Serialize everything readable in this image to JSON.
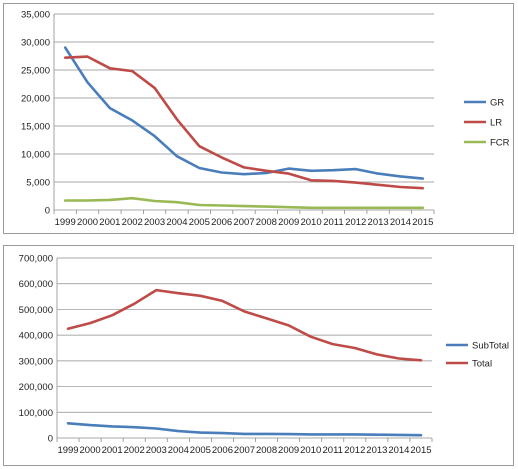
{
  "chart_data": [
    {
      "type": "line",
      "categories": [
        "1999",
        "2000",
        "2001",
        "2002",
        "2003",
        "2004",
        "2005",
        "2006",
        "2007",
        "2008",
        "2009",
        "2010",
        "2011",
        "2012",
        "2013",
        "2014",
        "2015"
      ],
      "ylim": [
        0,
        35000
      ],
      "yticks": [
        "0",
        "5,000",
        "10,000",
        "15,000",
        "20,000",
        "25,000",
        "30,000",
        "35,000"
      ],
      "ytick_values": [
        0,
        5000,
        10000,
        15000,
        20000,
        25000,
        30000,
        35000
      ],
      "grid": "horizontal",
      "legend_position": "right",
      "series": [
        {
          "name": "GR",
          "color": "#4a7ebb",
          "values": [
            29000,
            22800,
            18200,
            16000,
            13200,
            9600,
            7500,
            6700,
            6400,
            6600,
            7400,
            7000,
            7100,
            7300,
            6500,
            6000,
            5600
          ]
        },
        {
          "name": "LR",
          "color": "#be4b48",
          "values": [
            27200,
            27400,
            25300,
            24800,
            21800,
            16200,
            11400,
            9400,
            7600,
            7000,
            6500,
            5300,
            5200,
            4900,
            4500,
            4100,
            3900
          ]
        },
        {
          "name": "FCR",
          "color": "#98b954",
          "values": [
            1700,
            1700,
            1800,
            2100,
            1600,
            1400,
            900,
            800,
            700,
            600,
            500,
            400,
            400,
            400,
            400,
            400,
            400
          ]
        }
      ]
    },
    {
      "type": "line",
      "categories": [
        "1999",
        "2000",
        "2001",
        "2002",
        "2003",
        "2004",
        "2005",
        "2006",
        "2007",
        "2008",
        "2009",
        "2010",
        "2011",
        "2012",
        "2013",
        "2014",
        "2015"
      ],
      "ylim": [
        0,
        700000
      ],
      "yticks": [
        "0",
        "100,000",
        "200,000",
        "300,000",
        "400,000",
        "500,000",
        "600,000",
        "700,000"
      ],
      "ytick_values": [
        0,
        100000,
        200000,
        300000,
        400000,
        500000,
        600000,
        700000
      ],
      "grid": "horizontal",
      "legend_position": "right",
      "series": [
        {
          "name": "SubTotal",
          "color": "#4a7ebb",
          "values": [
            57000,
            50000,
            45000,
            42000,
            37000,
            27000,
            21000,
            19000,
            16000,
            16000,
            15000,
            14000,
            14000,
            14000,
            13000,
            12000,
            11000
          ]
        },
        {
          "name": "Total",
          "color": "#be4b48",
          "values": [
            425000,
            447000,
            477000,
            522000,
            575000,
            563000,
            553000,
            533000,
            492000,
            465000,
            438000,
            394000,
            365000,
            350000,
            325000,
            309000,
            302000
          ]
        }
      ]
    }
  ]
}
